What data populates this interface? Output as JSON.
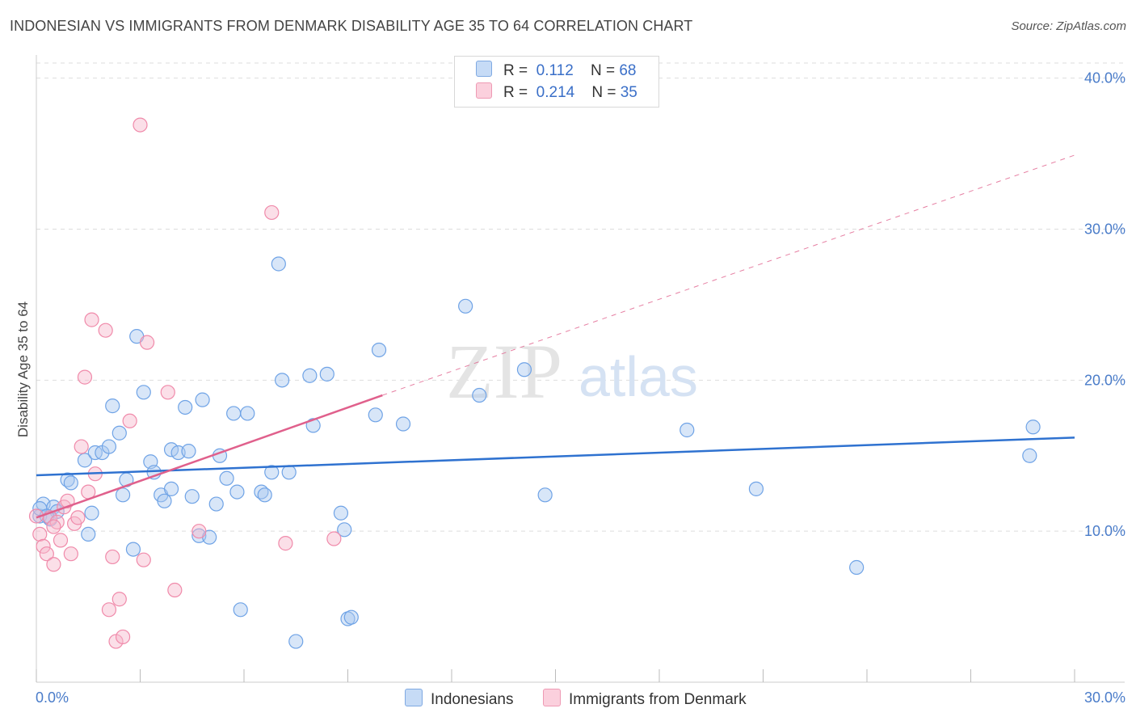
{
  "title": "INDONESIAN VS IMMIGRANTS FROM DENMARK DISABILITY AGE 35 TO 64 CORRELATION CHART",
  "source": "Source: ZipAtlas.com",
  "watermark": {
    "zip": "ZIP",
    "atlas": "atlas"
  },
  "legend_top": {
    "rows": [
      {
        "r_label": "R =",
        "r_value": "0.112",
        "n_label": "N =",
        "n_value": "68",
        "color": "#a9c8f0"
      },
      {
        "r_label": "R =",
        "r_value": "0.214",
        "n_label": "N =",
        "n_value": "35",
        "color": "#f7b8cb"
      }
    ]
  },
  "legend_bottom": [
    {
      "label": "Indonesians",
      "color": "#a9c8f0"
    },
    {
      "label": "Immigrants from Denmark",
      "color": "#f7b8cb"
    }
  ],
  "chart_data": {
    "type": "scatter",
    "title": "INDONESIAN VS IMMIGRANTS FROM DENMARK DISABILITY AGE 35 TO 64 CORRELATION CHART",
    "xlabel": "",
    "ylabel": "Disability Age 35 to 64",
    "xlim": [
      0,
      30
    ],
    "ylim": [
      0,
      41
    ],
    "x_tick_labels": [
      "0.0%",
      "30.0%"
    ],
    "y_ticks": [
      10,
      20,
      30,
      40
    ],
    "y_tick_labels": [
      "10.0%",
      "20.0%",
      "30.0%",
      "40.0%"
    ],
    "grid": true,
    "legend_position": "top-center",
    "series": [
      {
        "name": "Indonesians",
        "color": "#6fa3e6",
        "fill": "#a9c8f0",
        "line_color": "#2f72d0",
        "trend": {
          "x0": 0,
          "y0": 13.7,
          "x1": 30,
          "y1": 16.2
        },
        "points": [
          [
            0.1,
            11.0
          ],
          [
            0.2,
            11.8
          ],
          [
            0.4,
            10.8
          ],
          [
            0.5,
            11.6
          ],
          [
            0.6,
            11.3
          ],
          [
            0.9,
            13.4
          ],
          [
            1.0,
            13.2
          ],
          [
            1.4,
            14.7
          ],
          [
            1.5,
            9.8
          ],
          [
            1.6,
            11.2
          ],
          [
            1.7,
            15.2
          ],
          [
            1.9,
            15.2
          ],
          [
            2.1,
            15.6
          ],
          [
            2.2,
            18.3
          ],
          [
            2.4,
            16.5
          ],
          [
            2.5,
            12.4
          ],
          [
            2.6,
            13.4
          ],
          [
            2.8,
            8.8
          ],
          [
            2.9,
            22.9
          ],
          [
            3.1,
            19.2
          ],
          [
            3.3,
            14.6
          ],
          [
            3.4,
            13.9
          ],
          [
            3.6,
            12.4
          ],
          [
            3.7,
            12.0
          ],
          [
            3.9,
            12.8
          ],
          [
            3.9,
            15.4
          ],
          [
            4.1,
            15.2
          ],
          [
            4.3,
            18.2
          ],
          [
            4.4,
            15.3
          ],
          [
            4.5,
            12.3
          ],
          [
            4.7,
            9.7
          ],
          [
            4.8,
            18.7
          ],
          [
            5.0,
            9.6
          ],
          [
            5.2,
            11.8
          ],
          [
            5.3,
            15.0
          ],
          [
            5.5,
            13.5
          ],
          [
            5.7,
            17.8
          ],
          [
            5.8,
            12.6
          ],
          [
            5.9,
            4.8
          ],
          [
            6.1,
            17.8
          ],
          [
            6.5,
            12.6
          ],
          [
            6.6,
            12.4
          ],
          [
            6.8,
            13.9
          ],
          [
            7.0,
            27.7
          ],
          [
            7.1,
            20.0
          ],
          [
            7.3,
            13.9
          ],
          [
            7.5,
            2.7
          ],
          [
            7.9,
            20.3
          ],
          [
            8.0,
            17.0
          ],
          [
            8.4,
            20.4
          ],
          [
            8.8,
            11.2
          ],
          [
            8.9,
            10.1
          ],
          [
            9.0,
            4.2
          ],
          [
            9.1,
            4.3
          ],
          [
            9.8,
            17.7
          ],
          [
            9.9,
            22.0
          ],
          [
            10.6,
            17.1
          ],
          [
            12.4,
            24.9
          ],
          [
            12.8,
            19.0
          ],
          [
            14.1,
            20.7
          ],
          [
            14.7,
            12.4
          ],
          [
            18.8,
            16.7
          ],
          [
            20.8,
            12.8
          ],
          [
            23.7,
            7.6
          ],
          [
            28.7,
            15.0
          ],
          [
            28.8,
            16.9
          ],
          [
            0.1,
            11.5
          ],
          [
            0.3,
            11.0
          ]
        ]
      },
      {
        "name": "Immigrants from Denmark",
        "color": "#f08aaa",
        "fill": "#f7b8cb",
        "line_color": "#e0608c",
        "trend": {
          "x0": 0,
          "y0": 10.9,
          "x1": 10.0,
          "y1": 19.0
        },
        "trend_dashed": {
          "x0": 10.0,
          "y0": 19.0,
          "x1": 30,
          "y1": 34.9
        },
        "points": [
          [
            0.0,
            11.0
          ],
          [
            0.1,
            9.8
          ],
          [
            0.2,
            9.0
          ],
          [
            0.3,
            8.5
          ],
          [
            0.4,
            10.9
          ],
          [
            0.5,
            7.8
          ],
          [
            0.6,
            10.6
          ],
          [
            0.7,
            9.4
          ],
          [
            0.8,
            11.6
          ],
          [
            0.9,
            12.0
          ],
          [
            1.0,
            8.5
          ],
          [
            1.1,
            10.5
          ],
          [
            1.2,
            10.9
          ],
          [
            1.3,
            15.6
          ],
          [
            1.4,
            20.2
          ],
          [
            1.5,
            12.6
          ],
          [
            1.6,
            24.0
          ],
          [
            1.7,
            13.8
          ],
          [
            2.0,
            23.3
          ],
          [
            2.1,
            4.8
          ],
          [
            2.2,
            8.3
          ],
          [
            2.3,
            2.7
          ],
          [
            2.4,
            5.5
          ],
          [
            2.5,
            3.0
          ],
          [
            2.7,
            17.3
          ],
          [
            3.0,
            36.9
          ],
          [
            3.1,
            8.1
          ],
          [
            3.2,
            22.5
          ],
          [
            3.8,
            19.2
          ],
          [
            4.0,
            6.1
          ],
          [
            4.7,
            10.0
          ],
          [
            6.8,
            31.1
          ],
          [
            7.2,
            9.2
          ],
          [
            8.6,
            9.5
          ],
          [
            0.5,
            10.3
          ]
        ]
      }
    ]
  }
}
